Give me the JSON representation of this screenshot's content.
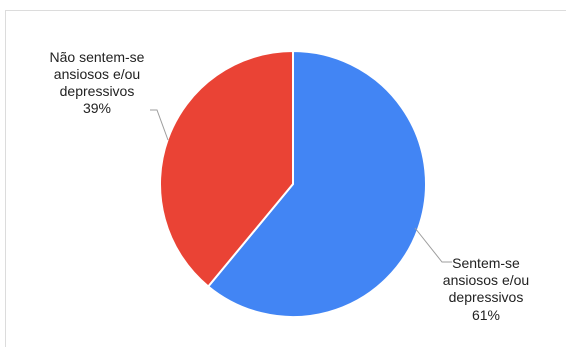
{
  "chart_data": {
    "type": "pie",
    "slices": [
      {
        "label_lines": [
          "Sentem-se",
          "ansiosos e/ou",
          "depressivos"
        ],
        "percent_label": "61%",
        "value": 61,
        "color": "#4285f4"
      },
      {
        "label_lines": [
          "Não sentem-se",
          "ansiosos e/ou",
          "depressivos"
        ],
        "percent_label": "39%",
        "value": 39,
        "color": "#ea4335"
      }
    ],
    "start_angle": "12 o'clock, clockwise",
    "legend": "labels outside slices with leader lines"
  }
}
